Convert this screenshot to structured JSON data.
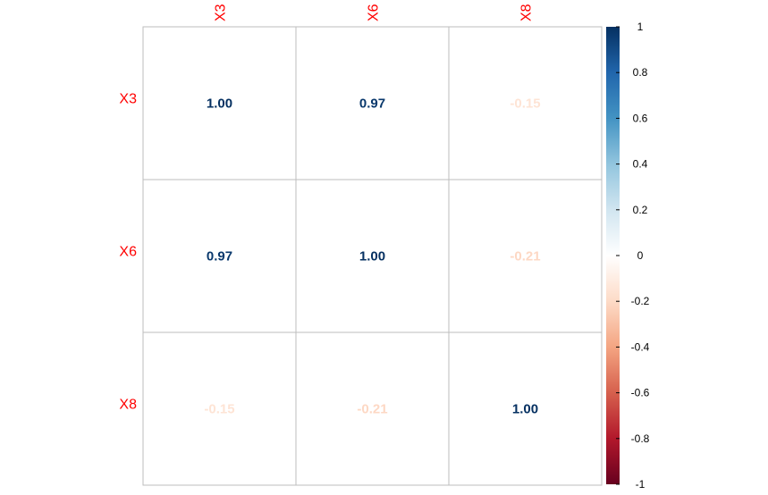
{
  "chart_data": {
    "type": "heatmap",
    "variables": [
      "X3",
      "X6",
      "X8"
    ],
    "matrix": [
      [
        1.0,
        0.97,
        -0.15
      ],
      [
        0.97,
        1.0,
        -0.21
      ],
      [
        -0.15,
        -0.21,
        1.0
      ]
    ],
    "cell_labels": [
      [
        "1.00",
        "0.97",
        "-0.15"
      ],
      [
        "0.97",
        "1.00",
        "-0.21"
      ],
      [
        "-0.15",
        "-0.21",
        "1.00"
      ]
    ],
    "colorbar": {
      "range": [
        -1,
        1
      ],
      "ticks": [
        1,
        0.8,
        0.6,
        0.4,
        0.2,
        0,
        -0.2,
        -0.4,
        -0.6,
        -0.8,
        -1
      ],
      "tick_labels": [
        "1",
        "0.8",
        "0.6",
        "0.4",
        "0.2",
        "0",
        "-0.2",
        "-0.4",
        "-0.6",
        "-0.8",
        "-1"
      ],
      "colors": [
        "#67001F",
        "#B2182B",
        "#D6604D",
        "#F4A582",
        "#FDDBC7",
        "#FFFFFF",
        "#D1E5F0",
        "#92C5DE",
        "#4393C3",
        "#2166AC",
        "#053061"
      ]
    },
    "label_color": "#FF0000",
    "grid_color": "#BEBEBE",
    "grid": true,
    "legend": "right"
  }
}
